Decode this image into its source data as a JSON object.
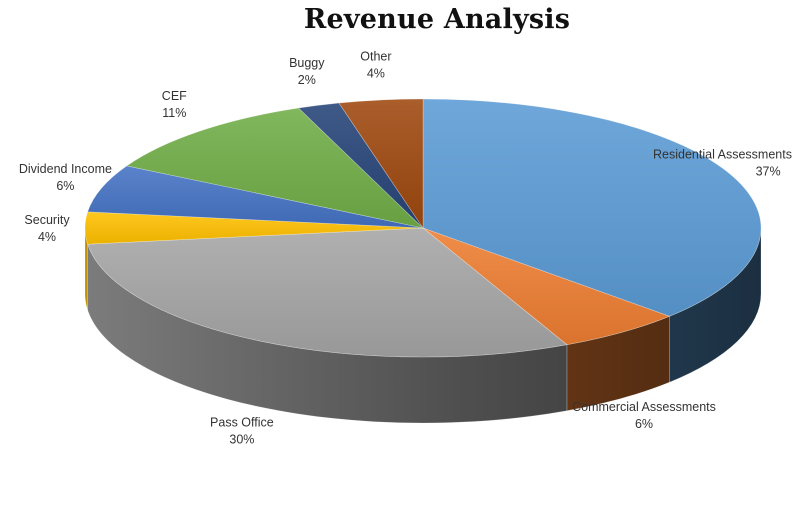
{
  "chart_data": {
    "type": "pie",
    "title": "Revenue Analysis",
    "style": "3d",
    "categories": [
      "Residential Assessments",
      "Commercial Assessments",
      "Pass Office",
      "Security",
      "Dividend Income",
      "CEF",
      "Buggy",
      "Other"
    ],
    "values": [
      37,
      6,
      30,
      4,
      6,
      11,
      2,
      4
    ],
    "labels": [
      "37%",
      "6%",
      "30%",
      "4%",
      "6%",
      "11%",
      "2%",
      "4%"
    ],
    "colors": [
      "#5B9BD5",
      "#ED7D31",
      "#A5A5A5",
      "#FFC000",
      "#4472C4",
      "#70AD47",
      "#264478",
      "#9E480E"
    ]
  }
}
